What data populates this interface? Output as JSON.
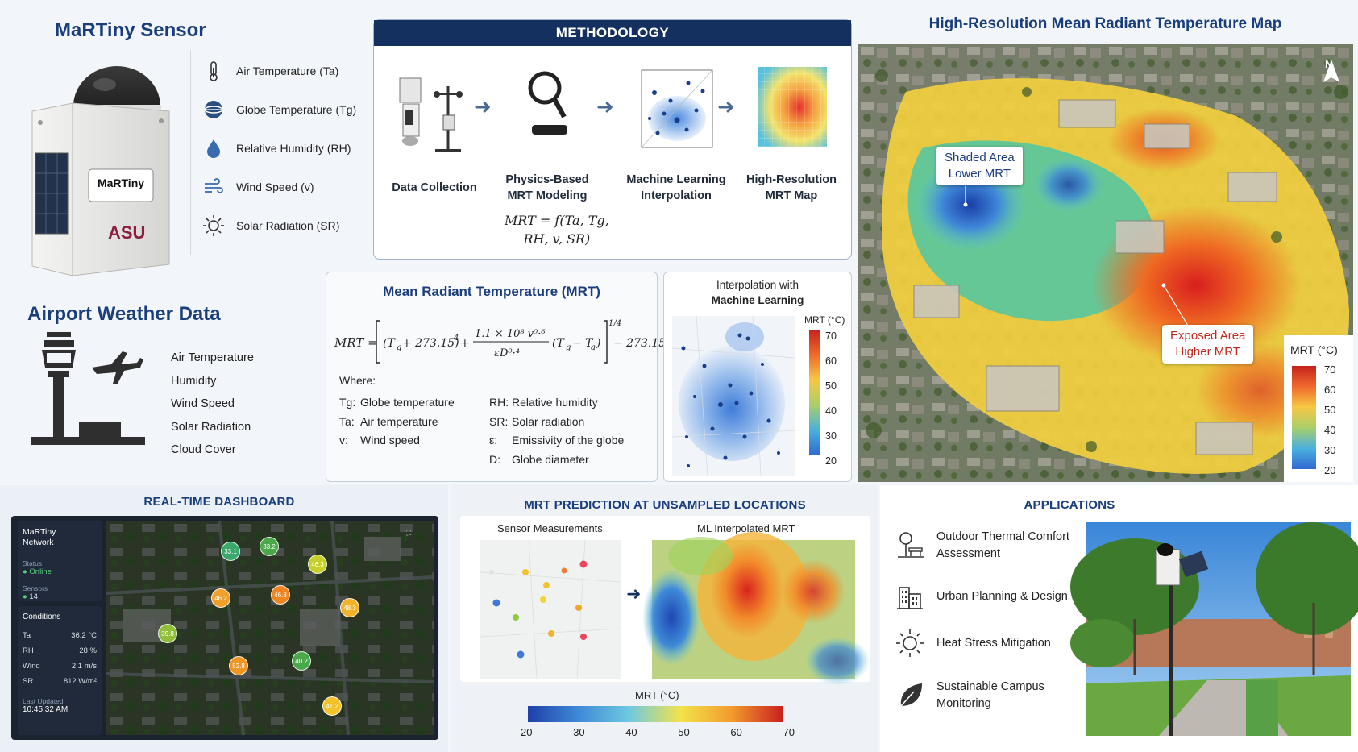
{
  "sensor": {
    "title": "MaRTiny Sensor",
    "device_label": "MaRTiny",
    "device_sub": "ASU",
    "variables": [
      {
        "label": "Air Temperature (Ta)",
        "icon": "thermometer-icon"
      },
      {
        "label": "Globe Temperature (Tg)",
        "icon": "globe-icon"
      },
      {
        "label": "Relative Humidity (RH)",
        "icon": "droplet-icon"
      },
      {
        "label": "Wind Speed (v)",
        "icon": "wind-icon"
      },
      {
        "label": "Solar Radiation (SR)",
        "icon": "sun-icon"
      }
    ]
  },
  "airport": {
    "title": "Airport Weather Data",
    "items": [
      "Air Temperature",
      "Humidity",
      "Wind Speed",
      "Solar Radiation",
      "Cloud Cover"
    ]
  },
  "methodology": {
    "title": "METHODOLOGY",
    "steps": [
      {
        "line1": "Data Collection",
        "line2": ""
      },
      {
        "line1": "Physics-Based",
        "line2": "MRT Modeling"
      },
      {
        "line1": "Machine Learning",
        "line2": "Interpolation"
      },
      {
        "line1": "High-Resolution",
        "line2": "MRT Map"
      }
    ],
    "formula_line1": "MRT = f(Ta, Tg,",
    "formula_line2": "RH, v, SR)"
  },
  "mrt": {
    "title": "Mean Radiant Temperature (MRT)",
    "formula": "MRT = [(Tg + 273.15)⁴ + (1.1 × 10⁸ v⁰·⁶ / εD⁰·⁴)(Tg − Ta)]^1/4 − 273.15",
    "where_label": "Where:",
    "definitions": [
      {
        "sym": "Tg:",
        "text": "Globe temperature"
      },
      {
        "sym": "Ta:",
        "text": "Air temperature"
      },
      {
        "sym": "v:",
        "text": "Wind speed"
      },
      {
        "sym": "RH:",
        "text": "Relative humidity"
      },
      {
        "sym": "SR:",
        "text": "Solar radiation"
      },
      {
        "sym": "ε:",
        "text": "Emissivity of the globe"
      },
      {
        "sym": "D:",
        "text": "Globe diameter"
      }
    ]
  },
  "interpolation": {
    "title_line1": "Interpolation with",
    "title_line2": "Machine Learning",
    "legend_title": "MRT (°C)",
    "ticks": [
      "70",
      "60",
      "50",
      "40",
      "30",
      "20"
    ]
  },
  "map": {
    "title": "High-Resolution Mean Radiant Temperature Map",
    "north": "N",
    "shaded_line1": "Shaded Area",
    "shaded_line2": "Lower MRT",
    "exposed_line1": "Exposed Area",
    "exposed_line2": "Higher MRT",
    "legend_title": "MRT (°C)",
    "ticks": [
      "70",
      "60",
      "50",
      "40",
      "30",
      "20"
    ]
  },
  "dashboard": {
    "title": "REAL-TIME DASHBOARD",
    "network_line1": "MaRTiny",
    "network_line2": "Network",
    "status_label": "Status",
    "status_value": "Online",
    "sensors_label": "Sensors",
    "sensors_value": "14",
    "conditions_label": "Conditions",
    "conditions": [
      {
        "k": "Ta",
        "v": "36.2 °C"
      },
      {
        "k": "RH",
        "v": "28 %"
      },
      {
        "k": "Wind",
        "v": "2.1 m/s"
      },
      {
        "k": "SR",
        "v": "812 W/m²"
      }
    ],
    "updated_label": "Last Updated",
    "updated_value": "10:45:32 AM",
    "dots": [
      "33.1",
      "33.2",
      "46.3",
      "46.2",
      "46.8",
      "48.3",
      "39.8",
      "52.8",
      "40.2",
      "41.2"
    ]
  },
  "prediction": {
    "title": "MRT PREDICTION AT UNSAMPLED LOCATIONS",
    "left_label": "Sensor Measurements",
    "right_label": "ML Interpolated MRT",
    "colorbar_label": "MRT (°C)",
    "ticks": [
      "20",
      "30",
      "40",
      "50",
      "60",
      "70"
    ]
  },
  "applications": {
    "title": "APPLICATIONS",
    "items": [
      {
        "line1": "Outdoor Thermal Comfort",
        "line2": "Assessment"
      },
      {
        "line1": "Urban Planning & Design",
        "line2": ""
      },
      {
        "line1": "Heat Stress Mitigation",
        "line2": ""
      },
      {
        "line1": "Sustainable Campus",
        "line2": "Monitoring"
      }
    ]
  }
}
